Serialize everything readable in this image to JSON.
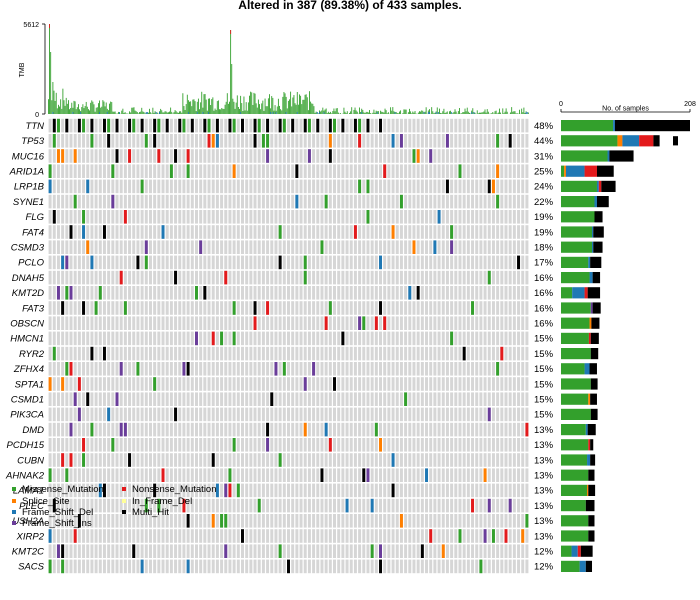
{
  "chart_data": {
    "type": "oncoplot",
    "title": "Altered in 387 (89.38%) of 433 samples.",
    "tmb_panel": {
      "ylabel": "TMB",
      "yticks": [
        "0",
        "5612"
      ],
      "ymax": 5612
    },
    "samples_panel": {
      "xlabel": "No. of samples",
      "xticks": [
        "0",
        "208"
      ],
      "xmax": 208
    },
    "colors": {
      "Missense_Mutation": "#33a02c",
      "Nonsense_Mutation": "#e31a1c",
      "Splice_Site": "#ff7f00",
      "In_Frame_Del": "#ffff99",
      "Frame_Shift_Del": "#1f78b4",
      "Multi_Hit": "#000000",
      "Frame_Shift_Ins": "#6a3d9a",
      "background": "#d6d6d6"
    },
    "legend": [
      {
        "label": "Missense_Mutation",
        "color": "#33a02c"
      },
      {
        "label": "Nonsense_Mutation",
        "color": "#e31a1c"
      },
      {
        "label": "Splice_Site",
        "color": "#ff7f00"
      },
      {
        "label": "In_Frame_Del",
        "color": "#ffff99"
      },
      {
        "label": "Frame_Shift_Del",
        "color": "#1f78b4"
      },
      {
        "label": "Multi_Hit",
        "color": "#000000"
      },
      {
        "label": "Frame_Shift_Ins",
        "color": "#6a3d9a"
      }
    ],
    "genes": [
      {
        "name": "TTN",
        "pct": "48%",
        "counts": {
          "Missense_Mutation": 84,
          "Frame_Shift_Del": 3,
          "Multi_Hit": 121
        }
      },
      {
        "name": "TP53",
        "pct": "44%",
        "counts": {
          "Missense_Mutation": 91,
          "Splice_Site": 8,
          "Frame_Shift_Del": 27,
          "Nonsense_Mutation": 23,
          "Multi_Hit": 10
        }
      },
      {
        "name": "MUC16",
        "pct": "31%",
        "counts": {
          "Missense_Mutation": 75,
          "Frame_Shift_Del": 3,
          "Multi_Hit": 39
        }
      },
      {
        "name": "ARID1A",
        "pct": "25%",
        "counts": {
          "Missense_Mutation": 5,
          "Splice_Site": 3,
          "Frame_Shift_Del": 30,
          "Nonsense_Mutation": 20,
          "Multi_Hit": 27
        }
      },
      {
        "name": "LRP1B",
        "pct": "24%",
        "counts": {
          "Missense_Mutation": 58,
          "Nonsense_Mutation": 4,
          "Frame_Shift_Del": 3,
          "Multi_Hit": 23
        }
      },
      {
        "name": "SYNE1",
        "pct": "22%",
        "counts": {
          "Missense_Mutation": 54,
          "Frame_Shift_Del": 4,
          "Multi_Hit": 19
        }
      },
      {
        "name": "FLG",
        "pct": "19%",
        "counts": {
          "Missense_Mutation": 54,
          "Multi_Hit": 13
        }
      },
      {
        "name": "FAT4",
        "pct": "19%",
        "counts": {
          "Missense_Mutation": 50,
          "Frame_Shift_Del": 2,
          "Multi_Hit": 17
        }
      },
      {
        "name": "CSMD3",
        "pct": "18%",
        "counts": {
          "Missense_Mutation": 50,
          "Frame_Shift_Del": 2,
          "Multi_Hit": 15
        }
      },
      {
        "name": "PCLO",
        "pct": "17%",
        "counts": {
          "Missense_Mutation": 44,
          "Frame_Shift_Del": 3,
          "Multi_Hit": 18
        }
      },
      {
        "name": "DNAH5",
        "pct": "16%",
        "counts": {
          "Missense_Mutation": 46,
          "Frame_Shift_Del": 5,
          "Multi_Hit": 12
        }
      },
      {
        "name": "KMT2D",
        "pct": "16%",
        "counts": {
          "Missense_Mutation": 18,
          "Frame_Shift_Del": 20,
          "Nonsense_Mutation": 5,
          "Multi_Hit": 20
        }
      },
      {
        "name": "FAT3",
        "pct": "16%",
        "counts": {
          "Missense_Mutation": 48,
          "Frame_Shift_Ins": 3,
          "Multi_Hit": 13
        }
      },
      {
        "name": "OBSCN",
        "pct": "16%",
        "counts": {
          "Missense_Mutation": 46,
          "Splice_Site": 3,
          "Multi_Hit": 13
        }
      },
      {
        "name": "HMCN1",
        "pct": "15%",
        "counts": {
          "Missense_Mutation": 45,
          "Nonsense_Mutation": 3,
          "Multi_Hit": 13
        }
      },
      {
        "name": "RYR2",
        "pct": "15%",
        "counts": {
          "Missense_Mutation": 48,
          "Multi_Hit": 12
        }
      },
      {
        "name": "ZFHX4",
        "pct": "15%",
        "counts": {
          "Missense_Mutation": 38,
          "Frame_Shift_Del": 8,
          "Multi_Hit": 12
        }
      },
      {
        "name": "SPTA1",
        "pct": "15%",
        "counts": {
          "Missense_Mutation": 48,
          "Multi_Hit": 11
        }
      },
      {
        "name": "CSMD1",
        "pct": "15%",
        "counts": {
          "Missense_Mutation": 44,
          "Splice_Site": 3,
          "Multi_Hit": 11
        }
      },
      {
        "name": "PIK3CA",
        "pct": "15%",
        "counts": {
          "Missense_Mutation": 48,
          "Multi_Hit": 11
        }
      },
      {
        "name": "DMD",
        "pct": "13%",
        "counts": {
          "Missense_Mutation": 40,
          "Frame_Shift_Del": 3,
          "Multi_Hit": 13
        }
      },
      {
        "name": "PCDH15",
        "pct": "13%",
        "counts": {
          "Missense_Mutation": 44,
          "Nonsense_Mutation": 3,
          "Multi_Hit": 5
        }
      },
      {
        "name": "CUBN",
        "pct": "13%",
        "counts": {
          "Missense_Mutation": 42,
          "Frame_Shift_Del": 5,
          "Multi_Hit": 8
        }
      },
      {
        "name": "AHNAK2",
        "pct": "13%",
        "counts": {
          "Missense_Mutation": 44,
          "Multi_Hit": 10
        }
      },
      {
        "name": "LAMA1",
        "pct": "13%",
        "counts": {
          "Missense_Mutation": 42,
          "Splice_Site": 2,
          "Multi_Hit": 11
        }
      },
      {
        "name": "PLEC",
        "pct": "13%",
        "counts": {
          "Missense_Mutation": 40,
          "Multi_Hit": 14
        }
      },
      {
        "name": "USH2A",
        "pct": "13%",
        "counts": {
          "Missense_Mutation": 44,
          "Multi_Hit": 10
        }
      },
      {
        "name": "XIRP2",
        "pct": "13%",
        "counts": {
          "Missense_Mutation": 44,
          "Multi_Hit": 10
        }
      },
      {
        "name": "KMT2C",
        "pct": "12%",
        "counts": {
          "Missense_Mutation": 17,
          "Frame_Shift_Del": 10,
          "Nonsense_Mutation": 5,
          "Multi_Hit": 19
        }
      },
      {
        "name": "SACS",
        "pct": "12%",
        "counts": {
          "Missense_Mutation": 30,
          "Frame_Shift_Del": 10,
          "Multi_Hit": 10
        }
      }
    ]
  }
}
